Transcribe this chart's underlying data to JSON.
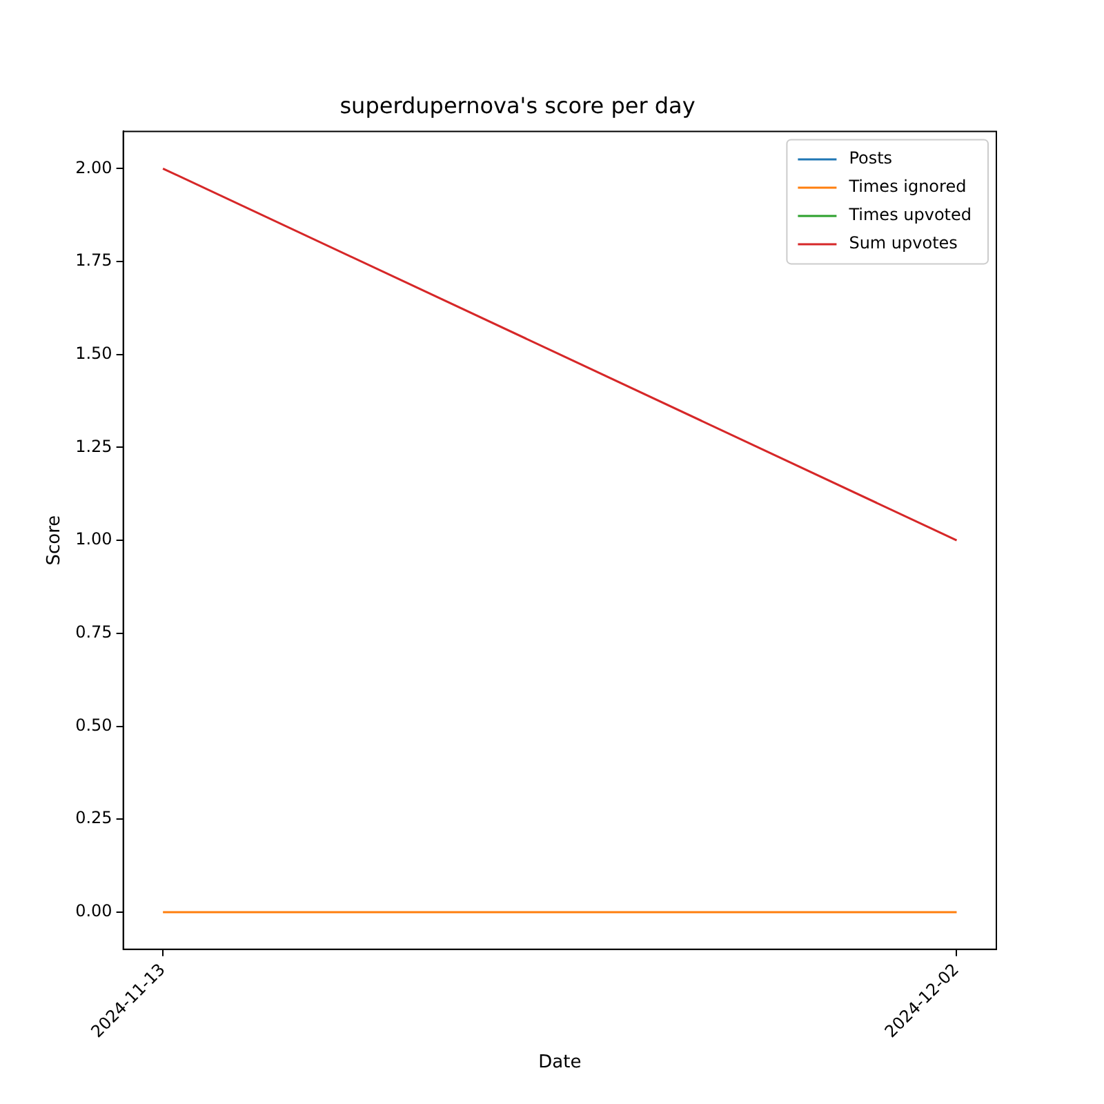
{
  "chart_data": {
    "type": "line",
    "title": "superdupernova's score per day",
    "xlabel": "Date",
    "ylabel": "Score",
    "x": [
      "2024-11-13",
      "2024-12-02"
    ],
    "xlim": [
      "2024-11-12T01:12",
      "2024-12-02T22:48"
    ],
    "xticks": [
      "2024-11-13",
      "2024-12-02"
    ],
    "series": [
      {
        "name": "Posts",
        "color": "#1f77b4",
        "values": [
          null,
          null
        ]
      },
      {
        "name": "Times ignored",
        "color": "#ff7f0e",
        "values": [
          0,
          0
        ]
      },
      {
        "name": "Times upvoted",
        "color": "#2ca02c",
        "values": [
          null,
          null
        ]
      },
      {
        "name": "Sum upvotes",
        "color": "#d62728",
        "values": [
          2,
          1
        ]
      }
    ],
    "ylim": [
      -0.1,
      2.1
    ],
    "yticks": [
      {
        "value": 0,
        "label": "0.00"
      },
      {
        "value": 0.25,
        "label": "0.25"
      },
      {
        "value": 0.5,
        "label": "0.50"
      },
      {
        "value": 0.75,
        "label": "0.75"
      },
      {
        "value": 1,
        "label": "1.00"
      },
      {
        "value": 1.25,
        "label": "1.25"
      },
      {
        "value": 1.5,
        "label": "1.50"
      },
      {
        "value": 1.75,
        "label": "1.75"
      },
      {
        "value": 2,
        "label": "2.00"
      }
    ],
    "grid": false,
    "legend": "top right",
    "marker": "none",
    "line_style": "solid"
  }
}
